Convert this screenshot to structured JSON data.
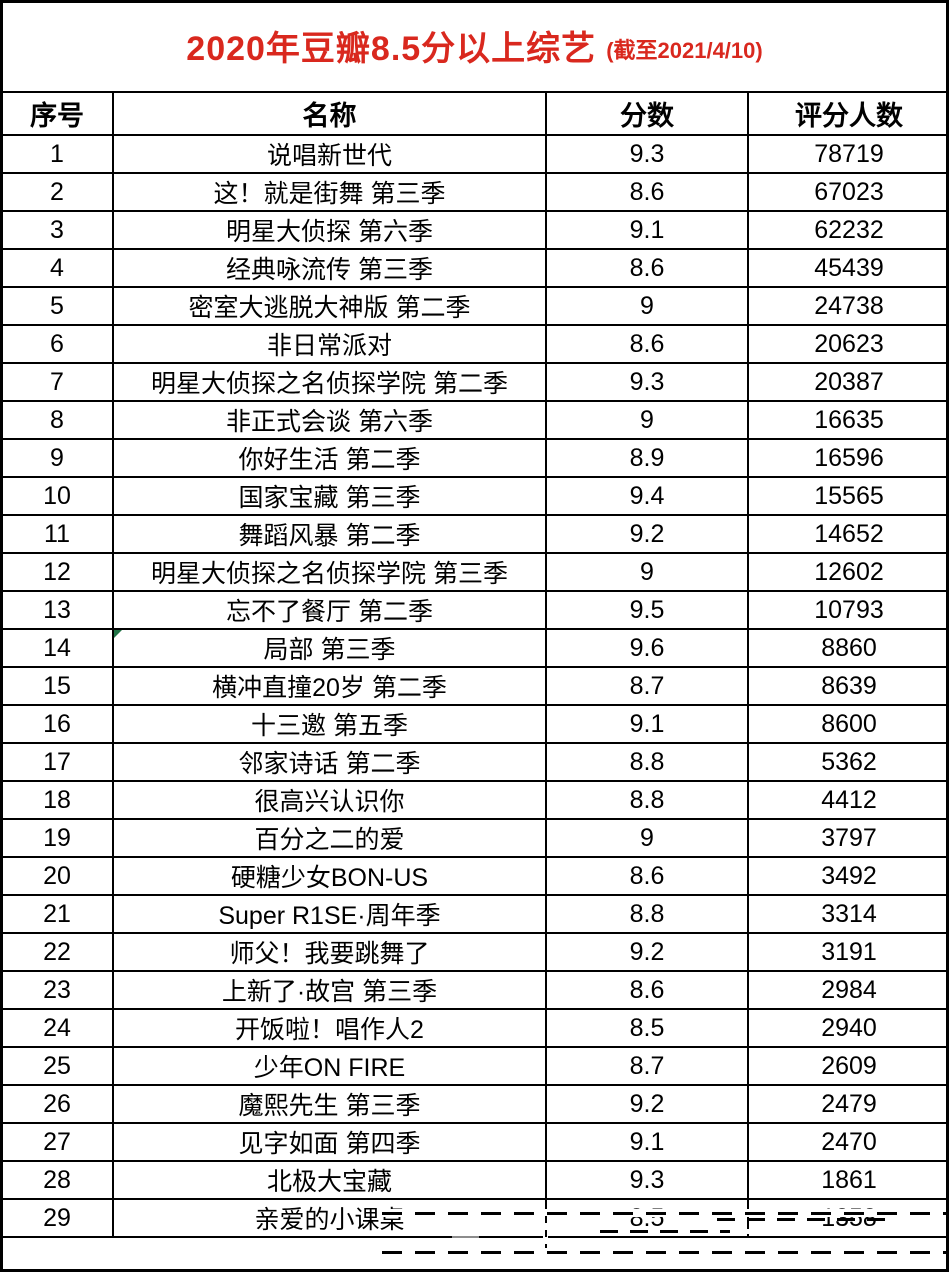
{
  "title": {
    "main": "2020年豆瓣8.5分以上综艺",
    "sub": "(截至2021/4/10)"
  },
  "colors": {
    "title_red": "#d9281e",
    "border_black": "#000000",
    "comment_flag_green": "#217346"
  },
  "table": {
    "headers": [
      "序号",
      "名称",
      "分数",
      "评分人数"
    ],
    "rows": [
      {
        "no": "1",
        "name": "说唱新世代",
        "score": "9.3",
        "raters": "78719"
      },
      {
        "no": "2",
        "name": "这！就是街舞 第三季",
        "score": "8.6",
        "raters": "67023"
      },
      {
        "no": "3",
        "name": "明星大侦探 第六季",
        "score": "9.1",
        "raters": "62232"
      },
      {
        "no": "4",
        "name": "经典咏流传 第三季",
        "score": "8.6",
        "raters": "45439"
      },
      {
        "no": "5",
        "name": "密室大逃脱大神版 第二季",
        "score": "9",
        "raters": "24738"
      },
      {
        "no": "6",
        "name": "非日常派对",
        "score": "8.6",
        "raters": "20623"
      },
      {
        "no": "7",
        "name": "明星大侦探之名侦探学院 第二季",
        "score": "9.3",
        "raters": "20387"
      },
      {
        "no": "8",
        "name": "非正式会谈 第六季",
        "score": "9",
        "raters": "16635"
      },
      {
        "no": "9",
        "name": "你好生活 第二季",
        "score": "8.9",
        "raters": "16596"
      },
      {
        "no": "10",
        "name": "国家宝藏 第三季",
        "score": "9.4",
        "raters": "15565"
      },
      {
        "no": "11",
        "name": "舞蹈风暴 第二季",
        "score": "9.2",
        "raters": "14652"
      },
      {
        "no": "12",
        "name": "明星大侦探之名侦探学院 第三季",
        "score": "9",
        "raters": "12602"
      },
      {
        "no": "13",
        "name": "忘不了餐厅 第二季",
        "score": "9.5",
        "raters": "10793"
      },
      {
        "no": "14",
        "name": "局部 第三季",
        "score": "9.6",
        "raters": "8860",
        "flag": true
      },
      {
        "no": "15",
        "name": "横冲直撞20岁 第二季",
        "score": "8.7",
        "raters": "8639"
      },
      {
        "no": "16",
        "name": "十三邀 第五季",
        "score": "9.1",
        "raters": "8600"
      },
      {
        "no": "17",
        "name": "邻家诗话 第二季",
        "score": "8.8",
        "raters": "5362"
      },
      {
        "no": "18",
        "name": "很高兴认识你",
        "score": "8.8",
        "raters": "4412"
      },
      {
        "no": "19",
        "name": "百分之二的爱",
        "score": "9",
        "raters": "3797"
      },
      {
        "no": "20",
        "name": "硬糖少女BON-US",
        "score": "8.6",
        "raters": "3492"
      },
      {
        "no": "21",
        "name": "Super R1SE·周年季",
        "score": "8.8",
        "raters": "3314"
      },
      {
        "no": "22",
        "name": "师父！我要跳舞了",
        "score": "9.2",
        "raters": "3191"
      },
      {
        "no": "23",
        "name": "上新了·故宫 第三季",
        "score": "8.6",
        "raters": "2984"
      },
      {
        "no": "24",
        "name": "开饭啦！唱作人2",
        "score": "8.5",
        "raters": "2940"
      },
      {
        "no": "25",
        "name": "少年ON FIRE",
        "score": "8.7",
        "raters": "2609"
      },
      {
        "no": "26",
        "name": "魔熙先生 第三季",
        "score": "9.2",
        "raters": "2479"
      },
      {
        "no": "27",
        "name": "见字如面 第四季",
        "score": "9.1",
        "raters": "2470"
      },
      {
        "no": "28",
        "name": "北极大宝藏",
        "score": "9.3",
        "raters": "1861"
      },
      {
        "no": "29",
        "name": "亲爱的小课桌",
        "score": "8.5",
        "raters": "1358"
      }
    ]
  }
}
